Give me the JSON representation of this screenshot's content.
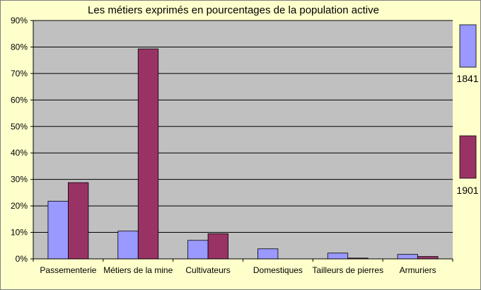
{
  "chart_data": {
    "type": "bar",
    "title": "Les métiers exprimés en pourcentages de la population active",
    "xlabel": "",
    "ylabel": "",
    "categories": [
      "Passementerie",
      "Métiers de la mine",
      "Cultivateurs",
      "Domestiques",
      "Tailleurs de pierres",
      "Armuriers"
    ],
    "series": [
      {
        "name": "1841",
        "values": [
          21.8,
          10.5,
          7.0,
          3.8,
          2.2,
          1.7
        ],
        "color": "#9999ff"
      },
      {
        "name": "1901",
        "values": [
          28.8,
          79.3,
          9.5,
          0.0,
          0.3,
          0.9
        ],
        "color": "#993366"
      }
    ],
    "ylim": [
      0,
      90
    ],
    "yticks": [
      "0%",
      "10%",
      "20%",
      "30%",
      "40%",
      "50%",
      "60%",
      "70%",
      "80%",
      "90%"
    ],
    "grid": true,
    "legend_position": "right",
    "plot_background": "#c0c0c0",
    "frame_background": "#ffffcc"
  }
}
